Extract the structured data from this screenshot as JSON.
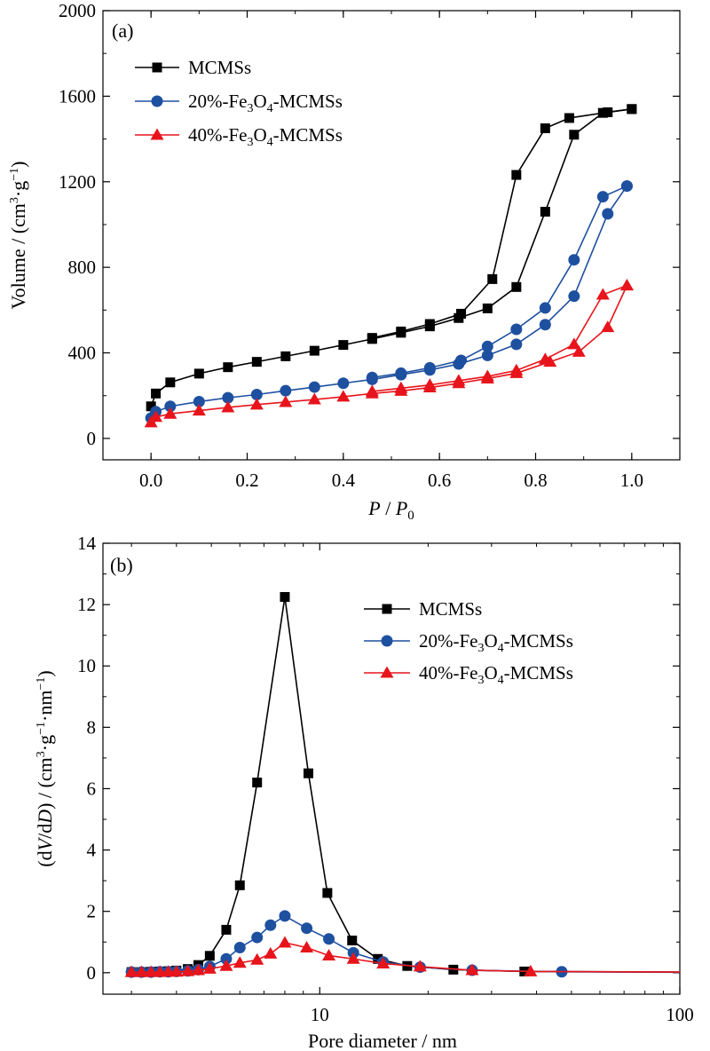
{
  "chart_data": [
    {
      "id": "a",
      "type": "line",
      "panel_label": "(a)",
      "xlabel": "P / P0",
      "xlabel_main": "P",
      "xlabel_sep": " / ",
      "xlabel_main2": "P",
      "xlabel_sub": "0",
      "ylabel": "Volume / (cm3·g−1)",
      "xlim": [
        -0.1,
        1.1
      ],
      "ylim": [
        -100,
        2000
      ],
      "x_ticks": [
        0.0,
        0.2,
        0.4,
        0.6,
        0.8,
        1.0
      ],
      "x_tick_labels": [
        "0.0",
        "0.2",
        "0.4",
        "0.6",
        "0.8",
        "1.0"
      ],
      "y_ticks": [
        0,
        400,
        800,
        1200,
        1600,
        2000
      ],
      "y_tick_labels": [
        "0",
        "400",
        "800",
        "1200",
        "1600",
        "2000"
      ],
      "legend_placement": "top-left",
      "series": [
        {
          "name": "MCMSs",
          "color": "#000000",
          "marker": "square",
          "adsorption": {
            "x": [
              0.0,
              0.01,
              0.04,
              0.1,
              0.16,
              0.22,
              0.28,
              0.34,
              0.4,
              0.46,
              0.52,
              0.58,
              0.64,
              0.7,
              0.76,
              0.82,
              0.88,
              0.94,
              1.0
            ],
            "y": [
              150,
              210,
              262,
              303,
              333,
              358,
              384,
              410,
              437,
              465,
              494,
              524,
              563,
              608,
              708,
              1060,
              1420,
              1522,
              1540
            ]
          },
          "desorption": {
            "x": [
              1.0,
              0.95,
              0.87,
              0.82,
              0.76,
              0.71,
              0.645,
              0.58,
              0.52,
              0.46
            ],
            "y": [
              1540,
              1525,
              1498,
              1450,
              1232,
              745,
              583,
              535,
              500,
              470
            ]
          }
        },
        {
          "name": "20%-Fe3O4-MCMSs",
          "color": "#1e50a0",
          "marker": "circle",
          "adsorption": {
            "x": [
              0.0,
              0.01,
              0.04,
              0.1,
              0.16,
              0.22,
              0.28,
              0.34,
              0.4,
              0.46,
              0.52,
              0.58,
              0.64,
              0.7,
              0.76,
              0.82,
              0.88,
              0.95,
              0.99
            ],
            "y": [
              95,
              125,
              150,
              172,
              190,
              205,
              223,
              240,
              258,
              276,
              298,
              320,
              348,
              388,
              440,
              532,
              665,
              1050,
              1180
            ]
          },
          "desorption": {
            "x": [
              0.99,
              0.94,
              0.88,
              0.82,
              0.76,
              0.7,
              0.645,
              0.58,
              0.52,
              0.46
            ],
            "y": [
              1180,
              1130,
              835,
              610,
              510,
              430,
              365,
              330,
              305,
              285
            ]
          }
        },
        {
          "name": "40%-Fe3O4-MCMSs",
          "color": "#e8141b",
          "marker": "triangle",
          "adsorption": {
            "x": [
              0.0,
              0.01,
              0.04,
              0.1,
              0.16,
              0.22,
              0.28,
              0.34,
              0.4,
              0.46,
              0.52,
              0.58,
              0.64,
              0.7,
              0.76,
              0.83,
              0.89,
              0.95,
              0.99
            ],
            "y": [
              75,
              100,
              115,
              130,
              145,
              158,
              170,
              182,
              195,
              210,
              222,
              238,
              258,
              280,
              305,
              358,
              405,
              520,
              715
            ]
          },
          "desorption": {
            "x": [
              0.99,
              0.94,
              0.88,
              0.82,
              0.76,
              0.7,
              0.64,
              0.58,
              0.52,
              0.46
            ],
            "y": [
              715,
              672,
              440,
              370,
              318,
              290,
              270,
              250,
              235,
              220
            ]
          }
        }
      ]
    },
    {
      "id": "b",
      "type": "line",
      "panel_label": "(b)",
      "xlabel": "Pore diameter / nm",
      "ylabel": "(dV/dD) / (cm3·g−1·nm−1)",
      "x_scale": "log",
      "xlim": [
        2.5,
        100
      ],
      "ylim": [
        -0.7,
        14
      ],
      "x_ticks": [
        10,
        100
      ],
      "x_tick_labels": [
        "10",
        "100"
      ],
      "y_ticks": [
        0,
        2,
        4,
        6,
        8,
        10,
        12,
        14
      ],
      "y_tick_labels": [
        "0",
        "2",
        "4",
        "6",
        "8",
        "10",
        "12",
        "14"
      ],
      "legend_placement": "top-right",
      "series": [
        {
          "name": "MCMSs",
          "color": "#000000",
          "marker": "square",
          "x": [
            3.0,
            3.2,
            3.4,
            3.6,
            3.8,
            4.0,
            4.3,
            4.6,
            4.95,
            5.5,
            6.0,
            6.7,
            8.0,
            9.3,
            10.5,
            12.3,
            14.5,
            17.5,
            23.5,
            37.0
          ],
          "y": [
            0.02,
            0.02,
            0.03,
            0.04,
            0.05,
            0.07,
            0.12,
            0.25,
            0.55,
            1.4,
            2.85,
            6.2,
            12.25,
            6.5,
            2.6,
            1.05,
            0.45,
            0.22,
            0.1,
            0.04
          ]
        },
        {
          "name": "20%-Fe3O4-MCMSs",
          "color": "#1e50a0",
          "marker": "circle",
          "x": [
            3.0,
            3.2,
            3.4,
            3.6,
            3.8,
            4.0,
            4.3,
            4.6,
            4.95,
            5.5,
            6.0,
            6.7,
            7.3,
            8.0,
            9.2,
            10.6,
            12.4,
            15.0,
            19.0,
            26.5,
            47.0
          ],
          "y": [
            0.02,
            0.02,
            0.02,
            0.03,
            0.03,
            0.04,
            0.06,
            0.1,
            0.2,
            0.45,
            0.82,
            1.15,
            1.55,
            1.85,
            1.45,
            1.1,
            0.65,
            0.35,
            0.18,
            0.08,
            0.03
          ]
        },
        {
          "name": "40%-Fe3O4-MCMSs",
          "color": "#e8141b",
          "marker": "triangle",
          "x": [
            3.0,
            3.2,
            3.4,
            3.6,
            3.8,
            4.0,
            4.3,
            4.6,
            4.95,
            5.5,
            6.0,
            6.7,
            7.3,
            8.0,
            9.2,
            10.6,
            12.4,
            15.0,
            19.0,
            26.5,
            38.5
          ],
          "y": [
            0.02,
            0.02,
            0.02,
            0.02,
            0.03,
            0.03,
            0.05,
            0.08,
            0.13,
            0.22,
            0.32,
            0.42,
            0.62,
            0.98,
            0.82,
            0.56,
            0.45,
            0.3,
            0.2,
            0.08,
            0.04
          ]
        }
      ]
    }
  ]
}
